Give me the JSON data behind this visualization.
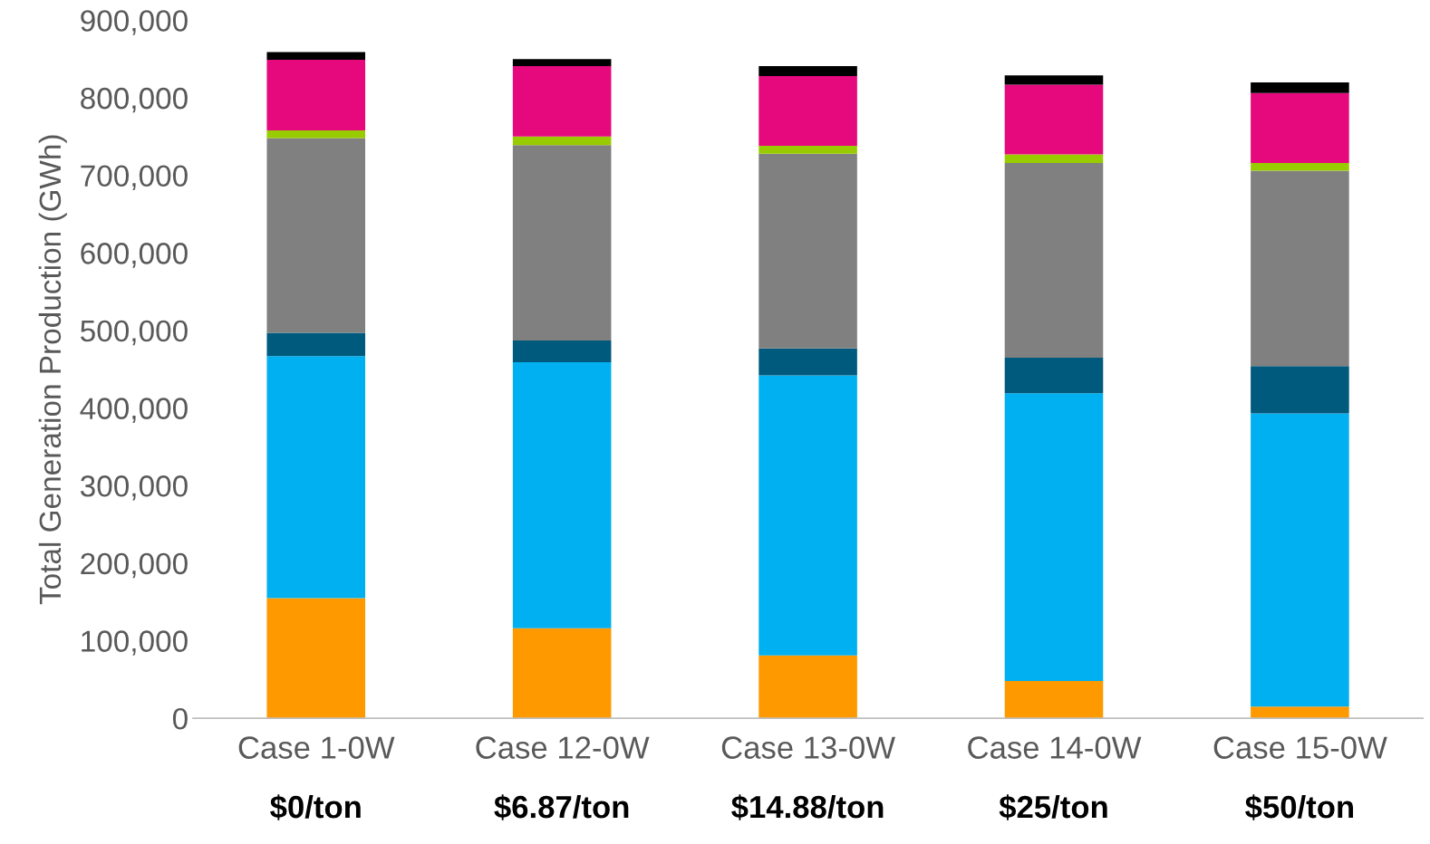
{
  "chart_data": {
    "type": "bar",
    "stacked": true,
    "ylabel": "Total Generation Production (GWh)",
    "categories": [
      "Case 1-0W\n$0/ton",
      "Case 12-0W\n$6.87/ton",
      "Case 13-0W\n$14.88/ton",
      "Case 14-0W\n$25/ton",
      "Case 15-0W\n$50/ton"
    ],
    "series": [
      {
        "color": "#ff9900",
        "values": [
          155000,
          116000,
          81000,
          48000,
          15000
        ]
      },
      {
        "color": "#00b0f0",
        "values": [
          312000,
          343000,
          361000,
          371000,
          378000
        ]
      },
      {
        "color": "#005a7d",
        "values": [
          30000,
          28000,
          35000,
          46000,
          61000
        ]
      },
      {
        "color": "#808080",
        "values": [
          251000,
          252000,
          251000,
          251000,
          252000
        ]
      },
      {
        "color": "#99cc00",
        "values": [
          10000,
          11000,
          10000,
          11000,
          10000
        ]
      },
      {
        "color": "#e6097e",
        "values": [
          91000,
          91000,
          90000,
          90000,
          90000
        ]
      },
      {
        "color": "#000000",
        "values": [
          10000,
          9000,
          13000,
          12000,
          14000
        ]
      }
    ],
    "ylim": [
      0,
      900000
    ],
    "yticks": [
      {
        "value": 0,
        "label": "0"
      },
      {
        "value": 100000,
        "label": "100,000"
      },
      {
        "value": 200000,
        "label": "200,000"
      },
      {
        "value": 300000,
        "label": "300,000"
      },
      {
        "value": 400000,
        "label": "400,000"
      },
      {
        "value": 500000,
        "label": "500,000"
      },
      {
        "value": 600000,
        "label": "600,000"
      },
      {
        "value": 700000,
        "label": "700,000"
      },
      {
        "value": 800000,
        "label": "800,000"
      },
      {
        "value": 900000,
        "label": "900,000"
      }
    ],
    "grid": false,
    "legend": false
  }
}
